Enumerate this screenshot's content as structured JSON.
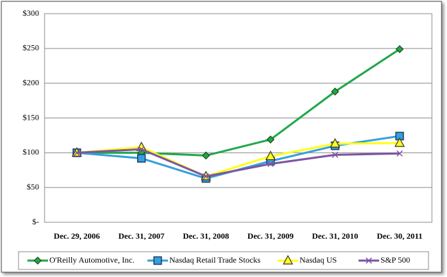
{
  "chart_data": {
    "type": "line",
    "categories": [
      "Dec. 29, 2006",
      "Dec. 31, 2007",
      "Dec. 31, 2008",
      "Dec. 31, 2009",
      "Dec. 31, 2010",
      "Dec. 30, 2011"
    ],
    "series": [
      {
        "name": "O'Reilly Automotive, Inc.",
        "color": "#21a74a",
        "marker": "diamond",
        "values": [
          100,
          100,
          96,
          119,
          188,
          249
        ]
      },
      {
        "name": "Nasdaq Retail Trade Stocks",
        "color": "#35a0dc",
        "marker": "square",
        "values": [
          100,
          92,
          63,
          88,
          110,
          124
        ]
      },
      {
        "name": "Nasdaq US",
        "color": "#ffff1a",
        "marker": "triangle",
        "values": [
          100,
          108,
          66,
          95,
          113,
          114
        ]
      },
      {
        "name": "S&P 500",
        "color": "#7d55a3",
        "marker": "x",
        "values": [
          100,
          105,
          66,
          84,
          97,
          99
        ]
      }
    ],
    "ylim": [
      0,
      300
    ],
    "yticks": [
      {
        "value": 0,
        "label": "$-"
      },
      {
        "value": 50,
        "label": "$50"
      },
      {
        "value": 100,
        "label": "$100"
      },
      {
        "value": 150,
        "label": "$150"
      },
      {
        "value": 200,
        "label": "$200"
      },
      {
        "value": 250,
        "label": "$250"
      },
      {
        "value": 300,
        "label": "$300"
      }
    ],
    "grid": true,
    "legend": "bottom"
  }
}
